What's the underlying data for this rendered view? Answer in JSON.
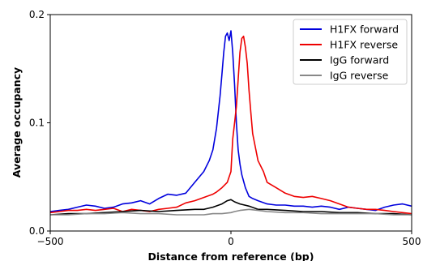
{
  "chart_data": {
    "type": "line",
    "title": "",
    "xlabel": "Distance from reference (bp)",
    "ylabel": "Average occupancy",
    "xlim": [
      -500,
      500
    ],
    "ylim": [
      0.0,
      0.2
    ],
    "xticks": [
      -500,
      0,
      500
    ],
    "xtick_labels": [
      "−500",
      "0",
      "500"
    ],
    "yticks": [
      0.0,
      0.1,
      0.2
    ],
    "ytick_labels": [
      "0.0",
      "0.1",
      "0.2"
    ],
    "grid": false,
    "legend_position": "top-right",
    "series": [
      {
        "name": "H1FX forward",
        "color": "#0000dd",
        "x": [
          -500,
          -475,
          -450,
          -425,
          -400,
          -375,
          -350,
          -325,
          -300,
          -275,
          -250,
          -225,
          -200,
          -175,
          -150,
          -125,
          -100,
          -75,
          -60,
          -50,
          -40,
          -30,
          -25,
          -20,
          -15,
          -10,
          -5,
          0,
          5,
          10,
          15,
          20,
          25,
          30,
          40,
          50,
          60,
          75,
          100,
          125,
          150,
          175,
          200,
          225,
          250,
          275,
          300,
          325,
          350,
          375,
          400,
          425,
          450,
          475,
          500
        ],
        "y": [
          0.018,
          0.019,
          0.02,
          0.022,
          0.024,
          0.023,
          0.021,
          0.022,
          0.025,
          0.026,
          0.028,
          0.025,
          0.03,
          0.034,
          0.033,
          0.035,
          0.045,
          0.055,
          0.065,
          0.075,
          0.095,
          0.125,
          0.145,
          0.165,
          0.18,
          0.183,
          0.176,
          0.185,
          0.165,
          0.135,
          0.1,
          0.075,
          0.062,
          0.052,
          0.04,
          0.032,
          0.03,
          0.028,
          0.025,
          0.024,
          0.024,
          0.023,
          0.023,
          0.022,
          0.023,
          0.022,
          0.02,
          0.022,
          0.021,
          0.02,
          0.019,
          0.022,
          0.024,
          0.025,
          0.023
        ]
      },
      {
        "name": "H1FX reverse",
        "color": "#ee0000",
        "x": [
          -500,
          -475,
          -450,
          -425,
          -400,
          -375,
          -350,
          -325,
          -300,
          -275,
          -250,
          -225,
          -200,
          -175,
          -150,
          -125,
          -100,
          -75,
          -50,
          -40,
          -25,
          -10,
          0,
          5,
          10,
          15,
          20,
          25,
          30,
          35,
          40,
          45,
          50,
          55,
          60,
          75,
          90,
          100,
          125,
          150,
          175,
          200,
          225,
          250,
          275,
          300,
          325,
          350,
          375,
          400,
          425,
          450,
          475,
          500
        ],
        "y": [
          0.017,
          0.018,
          0.019,
          0.019,
          0.02,
          0.019,
          0.02,
          0.021,
          0.018,
          0.02,
          0.019,
          0.018,
          0.02,
          0.021,
          0.022,
          0.026,
          0.028,
          0.031,
          0.034,
          0.036,
          0.04,
          0.045,
          0.055,
          0.085,
          0.1,
          0.115,
          0.14,
          0.165,
          0.178,
          0.18,
          0.17,
          0.155,
          0.13,
          0.11,
          0.09,
          0.065,
          0.055,
          0.045,
          0.04,
          0.035,
          0.032,
          0.031,
          0.032,
          0.03,
          0.028,
          0.025,
          0.022,
          0.021,
          0.02,
          0.02,
          0.019,
          0.018,
          0.017,
          0.016
        ]
      },
      {
        "name": "IgG forward",
        "color": "#000000",
        "x": [
          -500,
          -450,
          -400,
          -350,
          -300,
          -250,
          -200,
          -150,
          -100,
          -75,
          -50,
          -25,
          -10,
          0,
          10,
          25,
          50,
          75,
          100,
          150,
          200,
          250,
          300,
          350,
          400,
          450,
          500
        ],
        "y": [
          0.015,
          0.016,
          0.016,
          0.017,
          0.018,
          0.019,
          0.018,
          0.019,
          0.02,
          0.02,
          0.022,
          0.025,
          0.028,
          0.029,
          0.027,
          0.025,
          0.023,
          0.02,
          0.02,
          0.019,
          0.018,
          0.018,
          0.017,
          0.017,
          0.016,
          0.016,
          0.015
        ]
      },
      {
        "name": "IgG reverse",
        "color": "#888888",
        "x": [
          -500,
          -450,
          -400,
          -350,
          -300,
          -250,
          -200,
          -150,
          -100,
          -75,
          -50,
          -25,
          0,
          10,
          25,
          50,
          75,
          100,
          150,
          200,
          250,
          300,
          350,
          400,
          450,
          500
        ],
        "y": [
          0.015,
          0.015,
          0.016,
          0.016,
          0.017,
          0.016,
          0.016,
          0.015,
          0.015,
          0.015,
          0.016,
          0.016,
          0.017,
          0.018,
          0.019,
          0.02,
          0.019,
          0.018,
          0.017,
          0.017,
          0.016,
          0.016,
          0.016,
          0.016,
          0.015,
          0.015
        ]
      }
    ]
  }
}
